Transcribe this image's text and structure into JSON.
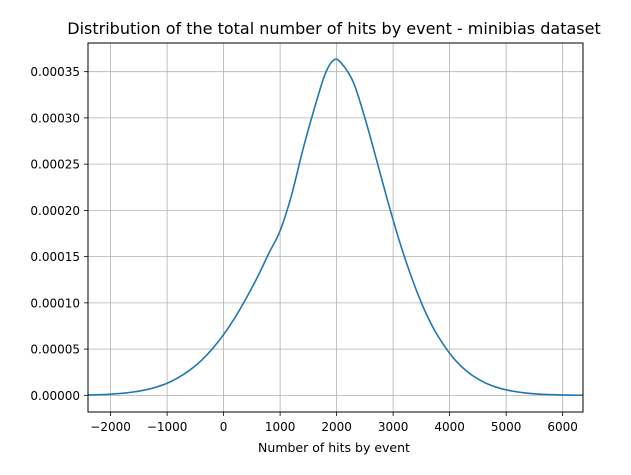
{
  "chart_data": {
    "type": "line",
    "title": "Distribution of the total number of hits by event - minibias dataset",
    "xlabel": "Number of hits by event",
    "ylabel": "",
    "xlim": [
      -2400,
      6360
    ],
    "ylim": [
      -1.8e-05,
      0.000381
    ],
    "xticks": [
      -2000,
      -1000,
      0,
      1000,
      2000,
      3000,
      4000,
      5000,
      6000
    ],
    "xtick_labels": [
      "−2000",
      "−1000",
      "0",
      "1000",
      "2000",
      "3000",
      "4000",
      "5000",
      "6000"
    ],
    "yticks": [
      0,
      5e-05,
      0.0001,
      0.00015,
      0.0002,
      0.00025,
      0.0003,
      0.00035
    ],
    "ytick_labels": [
      "0.00000",
      "0.00005",
      "0.00010",
      "0.00015",
      "0.00020",
      "0.00025",
      "0.00030",
      "0.00035"
    ],
    "grid": true,
    "line_color": "#1f77b4",
    "series": [
      {
        "x": [
          -2400,
          -2200,
          -2000,
          -1800,
          -1600,
          -1400,
          -1200,
          -1000,
          -800,
          -600,
          -400,
          -200,
          0,
          200,
          400,
          600,
          800,
          1000,
          1200,
          1400,
          1600,
          1800,
          1960,
          2100,
          2300,
          2500,
          2700,
          2900,
          3100,
          3300,
          3500,
          3700,
          3900,
          4100,
          4300,
          4500,
          4700,
          4900,
          5100,
          5300,
          5500,
          5700,
          5900,
          6100,
          6360
        ],
        "y": [
          4e-07,
          7e-07,
          1.3e-06,
          2.2e-06,
          3.6e-06,
          5.7e-06,
          8.8e-06,
          1.31e-05,
          1.92e-05,
          2.72e-05,
          3.74e-05,
          5.02e-05,
          6.57e-05,
          8.4e-05,
          0.000105,
          0.000128,
          0.0001535,
          0.000178,
          0.000216,
          0.000265,
          0.000309,
          0.000348,
          0.000363,
          0.000358,
          0.000338,
          0.0003,
          0.000256,
          0.000211,
          0.000169,
          0.000132,
          0.0001,
          7.4e-05,
          5.4e-05,
          3.8e-05,
          2.62e-05,
          1.77e-05,
          1.16e-05,
          7.5e-06,
          4.7e-06,
          2.9e-06,
          1.7e-06,
          1e-06,
          6e-07,
          3e-07,
          1e-07
        ]
      }
    ]
  }
}
